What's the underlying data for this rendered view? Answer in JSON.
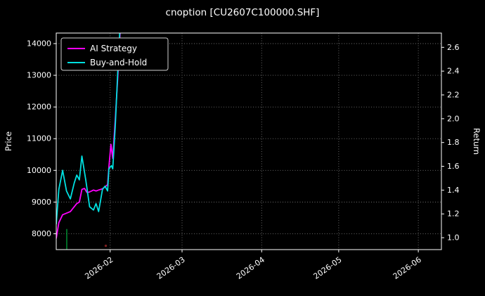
{
  "window": {
    "title": "cnoption [CU2607C100000.SHF]"
  },
  "chart_data": {
    "type": "line",
    "title": "cnoption [CU2607C100000.SHF]",
    "xlabel": "",
    "ylabel_left": "Price",
    "ylabel_right": "Return",
    "x_unit": "days since 2026-01-11",
    "x_range": [
      0,
      150
    ],
    "x_ticks": [
      {
        "label": "2026-02",
        "day": 21
      },
      {
        "label": "2026-03",
        "day": 49
      },
      {
        "label": "2026-04",
        "day": 80
      },
      {
        "label": "2026-05",
        "day": 110
      },
      {
        "label": "2026-06",
        "day": 141
      }
    ],
    "ylim_left": [
      7500,
      14333
    ],
    "yticks_left": [
      8000,
      9000,
      10000,
      11000,
      12000,
      13000,
      14000
    ],
    "ylim_right": [
      0.9,
      2.72
    ],
    "yticks_right": [
      1.0,
      1.2,
      1.4,
      1.6,
      1.8,
      2.0,
      2.2,
      2.4,
      2.6
    ],
    "grid": "dotted",
    "legend_position": "top-left",
    "colors": {
      "background": "#000000",
      "text": "#ffffff",
      "spine": "#ffffff",
      "grid": "#737373",
      "legend_border": "#cfcfcf"
    },
    "series": [
      {
        "name": "AI Strategy",
        "color": "#ff00ff",
        "axis": "left",
        "x": [
          0,
          1,
          2.5,
          4,
          5.5,
          7,
          8,
          9,
          10,
          11,
          12,
          13,
          14.5,
          15.5,
          16.5,
          18,
          19,
          20,
          20.5,
          21.3,
          22,
          23,
          24,
          25
        ],
        "y": [
          7850,
          8350,
          8600,
          8650,
          8700,
          8850,
          8950,
          9000,
          9400,
          9430,
          9300,
          9320,
          9380,
          9350,
          9380,
          9420,
          9480,
          9550,
          10100,
          10820,
          10380,
          11600,
          13000,
          14550
        ]
      },
      {
        "name": "Buy-and-Hold",
        "color": "#00e0e0",
        "axis": "left",
        "x": [
          0,
          1,
          2.5,
          4,
          5.5,
          7,
          8,
          9,
          10,
          11.5,
          13,
          14.5,
          15.5,
          16.5,
          18,
          19,
          20,
          20.5,
          21.5,
          22,
          23,
          24,
          24.8
        ],
        "y": [
          8300,
          9400,
          10000,
          9350,
          9100,
          9600,
          9850,
          9700,
          10450,
          9700,
          8850,
          8750,
          8950,
          8700,
          9400,
          9500,
          9350,
          10050,
          10150,
          10050,
          11400,
          13200,
          14450
        ]
      }
    ],
    "markers": [
      {
        "kind": "vline",
        "name": "green-vline-marker",
        "day": 4.1,
        "price_from": 7500,
        "price_to": 8150,
        "color": "#00a33a"
      },
      {
        "kind": "dot",
        "name": "red-dot-marker",
        "day": 19.3,
        "price": 7620,
        "color": "#7a1f1f"
      }
    ]
  }
}
